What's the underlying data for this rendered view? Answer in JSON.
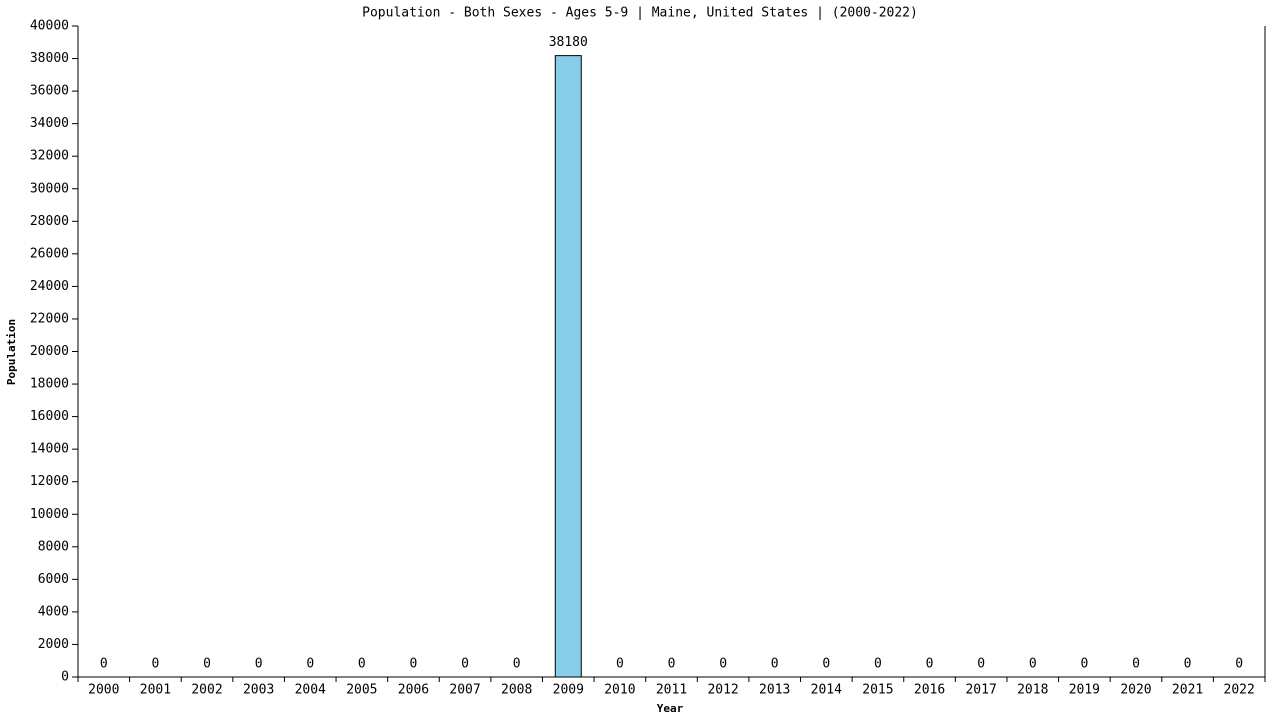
{
  "chart_data": {
    "type": "bar",
    "title": "Population - Both Sexes - Ages 5-9 | Maine, United States |  (2000-2022)",
    "x_label": "Year",
    "y_label": "Population",
    "categories": [
      "2000",
      "2001",
      "2002",
      "2003",
      "2004",
      "2005",
      "2006",
      "2007",
      "2008",
      "2009",
      "2010",
      "2011",
      "2012",
      "2013",
      "2014",
      "2015",
      "2016",
      "2017",
      "2018",
      "2019",
      "2020",
      "2021",
      "2022"
    ],
    "values": [
      0,
      0,
      0,
      0,
      0,
      0,
      0,
      0,
      0,
      38180,
      0,
      0,
      0,
      0,
      0,
      0,
      0,
      0,
      0,
      0,
      0,
      0,
      0
    ],
    "color": "#87ceeb",
    "ylim": [
      0,
      40000
    ],
    "yticks": [
      0,
      2000,
      4000,
      6000,
      8000,
      10000,
      12000,
      14000,
      16000,
      18000,
      20000,
      22000,
      24000,
      26000,
      28000,
      30000,
      32000,
      34000,
      36000,
      38000,
      40000
    ]
  }
}
